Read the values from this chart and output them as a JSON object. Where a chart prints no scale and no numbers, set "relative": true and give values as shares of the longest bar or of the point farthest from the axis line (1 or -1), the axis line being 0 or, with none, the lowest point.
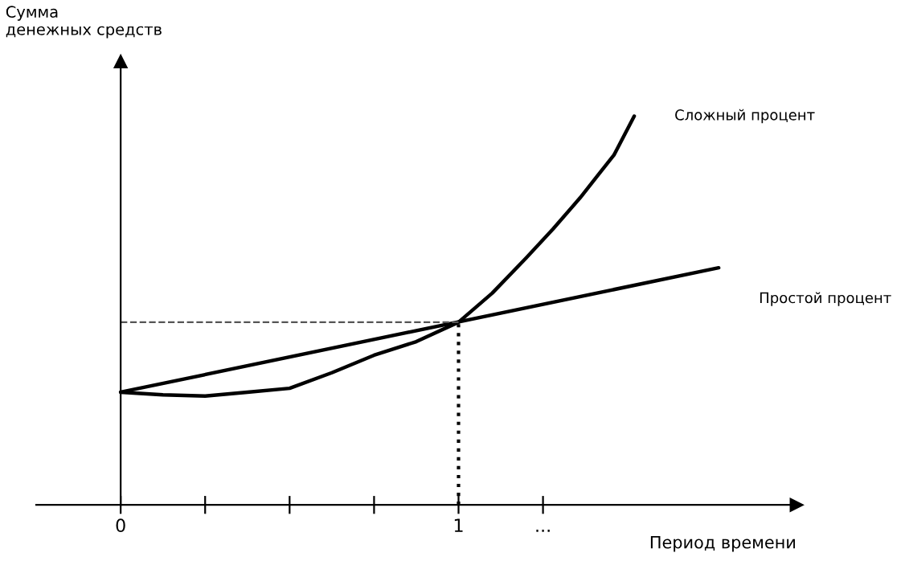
{
  "chart_data": {
    "type": "line",
    "relative": true,
    "xlabel": "Период времени",
    "ylabel": "Сумма\nденежных средств",
    "xlim": [
      -0.25,
      2.0
    ],
    "xticks": [
      0,
      {
        "value": 0.25,
        "label": null
      },
      {
        "value": 0.5,
        "label": null
      },
      {
        "value": 0.75,
        "label": null
      },
      1,
      {
        "value": 1.25,
        "label": "..."
      }
    ],
    "series": [
      {
        "name": "Сложный процент",
        "color": "#000000",
        "x": [
          0,
          0.125,
          0.25,
          0.375,
          0.5,
          0.625,
          0.75,
          0.875,
          1,
          1.1,
          1.2,
          1.28,
          1.36,
          1.41,
          1.46,
          1.52
        ],
        "values": [
          0.29,
          0.283,
          0.28,
          0.29,
          0.3,
          0.34,
          0.385,
          0.42,
          0.47,
          0.545,
          0.635,
          0.71,
          0.79,
          0.845,
          0.9,
          1
        ]
      },
      {
        "name": "Простой процент",
        "color": "#000000",
        "x": [
          0,
          1.77
        ],
        "values": [
          0.29,
          0.61
        ]
      }
    ],
    "ref_lines": [
      {
        "axis": "y",
        "value": 0.47,
        "line_style": "dashed",
        "color": "#555555"
      },
      {
        "axis": "x",
        "value": 1,
        "line_style": "dotted",
        "color": "#000000"
      }
    ],
    "marker": "none",
    "line_style": "solid",
    "legend": false
  }
}
